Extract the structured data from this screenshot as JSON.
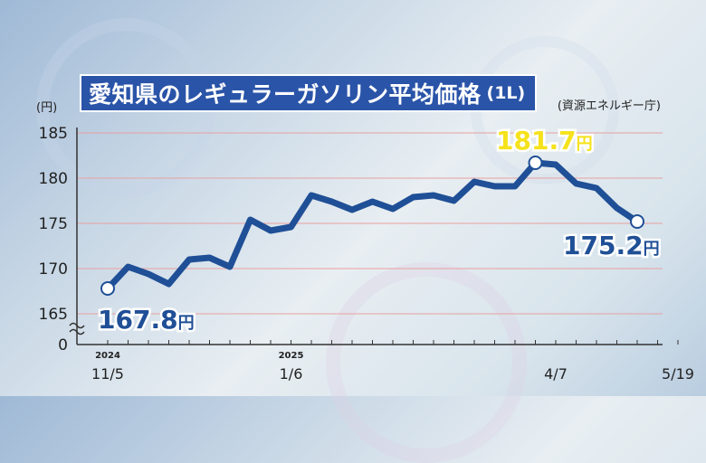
{
  "title": "愛知県のレギュラーガソリン平均価格",
  "title_unit": "(1L)",
  "source": "(資源エネルギー庁)",
  "y_unit_label": "(円)",
  "colors": {
    "line": "#1f4f96",
    "title_bg": "#2a54a8",
    "highlight_value": "#f5e21c",
    "value_text": "#1f4f96",
    "gridline": "#e8a0a0"
  },
  "chart_data": {
    "type": "line",
    "ylim": [
      165,
      185
    ],
    "y_ticks": [
      "185",
      "180",
      "175",
      "170",
      "165",
      "0"
    ],
    "y_axis_break": true,
    "x_tick_labels": [
      {
        "index": 0,
        "year": "2024",
        "label": "11/5"
      },
      {
        "index": 9,
        "year": "2025",
        "label": "1/6"
      },
      {
        "index": 22,
        "year": "",
        "label": "4/7"
      },
      {
        "index": 28,
        "year": "",
        "label": "5/19"
      }
    ],
    "series": [
      {
        "values": [
          167.8,
          170.2,
          169.4,
          168.3,
          171.0,
          171.2,
          170.2,
          175.4,
          174.2,
          174.6,
          178.1,
          177.4,
          176.5,
          177.4,
          176.6,
          177.9,
          178.1,
          177.5,
          179.6,
          179.1,
          179.1,
          181.7,
          181.5,
          179.4,
          178.9,
          176.7,
          175.2
        ]
      }
    ],
    "annotations": [
      {
        "point_index": 0,
        "value": "167.8",
        "unit": "円"
      },
      {
        "point_index": 21,
        "value": "181.7",
        "unit": "円"
      },
      {
        "point_index": 26,
        "value": "175.2",
        "unit": "円"
      }
    ]
  }
}
